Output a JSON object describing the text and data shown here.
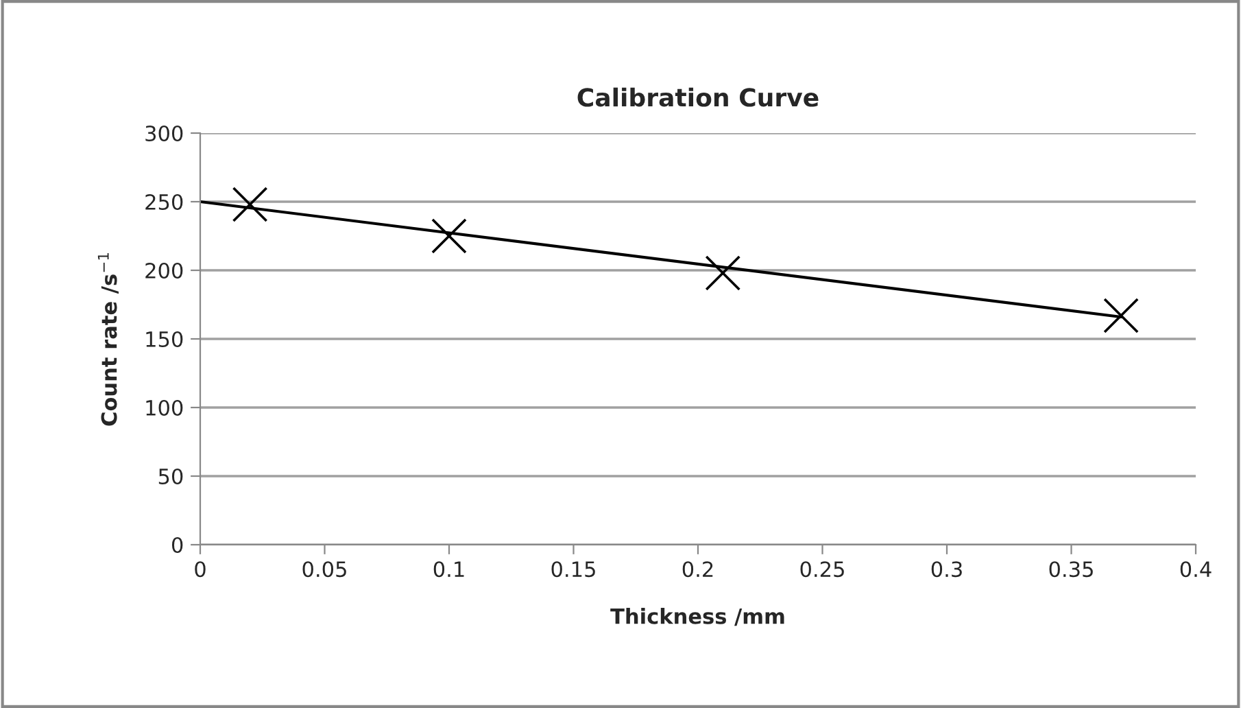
{
  "chart_data": {
    "type": "scatter",
    "title": "Calibration Curve",
    "xlabel": "Thickness /mm",
    "ylabel": "Count rate /s$^{−1}$",
    "series": [
      {
        "color": "#000000",
        "marker": "cross",
        "x": [
          0.02,
          0.1,
          0.21,
          0.37
        ],
        "values": [
          248,
          225,
          198,
          167
        ]
      },
      {
        "type": "line",
        "color": "#000000",
        "line_style": "solid",
        "x": [
          0,
          0.37
        ],
        "values": [
          250,
          166
        ]
      }
    ],
    "xlim": [
      0,
      0.4
    ],
    "xticks": [
      0,
      0.05,
      0.1,
      0.15,
      0.2,
      0.25,
      0.3,
      0.35,
      0.4
    ],
    "ylim": [
      0,
      300
    ],
    "yticks": [
      0,
      50,
      100,
      150,
      200,
      250,
      300
    ],
    "grid": "y",
    "legend": false
  }
}
